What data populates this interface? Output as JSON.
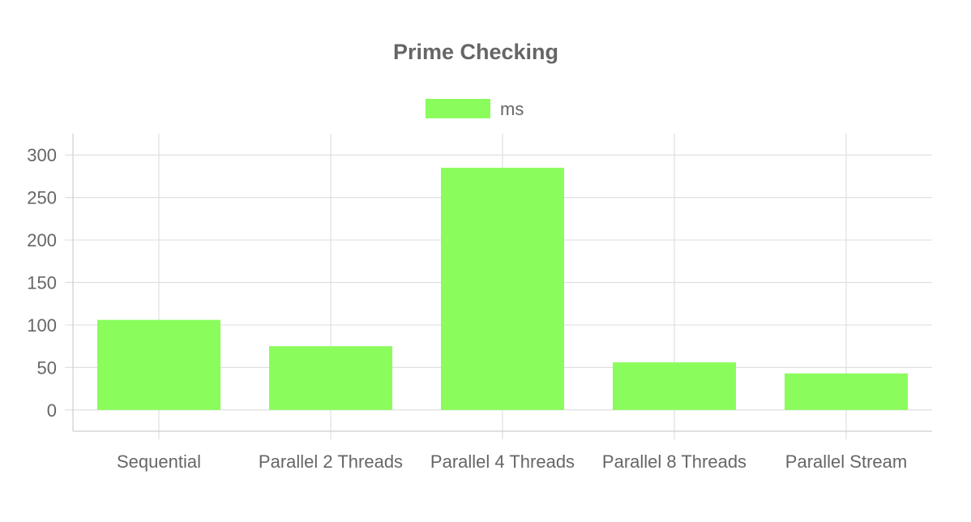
{
  "chart_data": {
    "type": "bar",
    "title": "Prime Checking",
    "categories": [
      "Sequential",
      "Parallel 2 Threads",
      "Parallel 4 Threads",
      "Parallel 8 Threads",
      "Parallel Stream"
    ],
    "series": [
      {
        "name": "ms",
        "values": [
          106,
          75,
          285,
          56,
          43
        ],
        "color": "#8afc5c"
      }
    ],
    "xlabel": "",
    "ylabel": "",
    "ylim": [
      -25,
      325
    ],
    "yticks": [
      0,
      50,
      100,
      150,
      200,
      250,
      300
    ],
    "grid": true,
    "legend_position": "top-center"
  }
}
